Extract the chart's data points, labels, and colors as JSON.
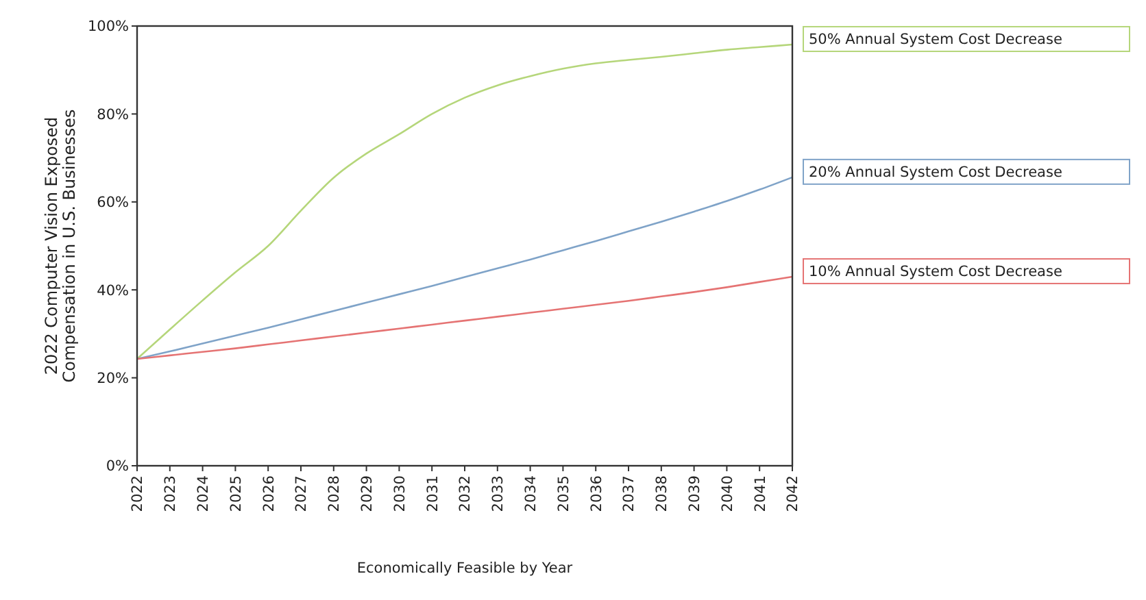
{
  "chart_data": {
    "type": "line",
    "xlabel": "Economically Feasible by Year",
    "ylabel": "2022 Computer Vision Exposed\nCompensation in U.S. Businesses",
    "categories": [
      "2022",
      "2023",
      "2024",
      "2025",
      "2026",
      "2027",
      "2028",
      "2029",
      "2030",
      "2031",
      "2032",
      "2033",
      "2034",
      "2035",
      "2036",
      "2037",
      "2038",
      "2039",
      "2040",
      "2041",
      "2042"
    ],
    "series": [
      {
        "name": "50% Annual System Cost Decrease",
        "color": "#b5d67a",
        "values": [
          24.3,
          31,
          37.6,
          44,
          50,
          58,
          65.5,
          71,
          75.4,
          80,
          83.7,
          86.5,
          88.6,
          90.3,
          91.5,
          92.3,
          93,
          93.8,
          94.6,
          95.2,
          95.8
        ]
      },
      {
        "name": "20% Annual System Cost Decrease",
        "color": "#7fa3c8",
        "values": [
          24.3,
          26,
          27.8,
          29.6,
          31.4,
          33.3,
          35.2,
          37.1,
          39,
          40.9,
          42.9,
          44.9,
          46.9,
          49,
          51.1,
          53.3,
          55.5,
          57.8,
          60.2,
          62.8,
          65.6
        ]
      },
      {
        "name": "10% Annual System Cost Decrease",
        "color": "#e57373",
        "values": [
          24.3,
          25.1,
          25.9,
          26.7,
          27.6,
          28.5,
          29.4,
          30.3,
          31.2,
          32.1,
          33,
          33.9,
          34.8,
          35.7,
          36.6,
          37.5,
          38.5,
          39.5,
          40.6,
          41.8,
          43
        ]
      }
    ],
    "ylim": [
      0,
      100
    ],
    "yticks": [
      {
        "value": 0,
        "label": "0%"
      },
      {
        "value": 20,
        "label": "20%"
      },
      {
        "value": 40,
        "label": "40%"
      },
      {
        "value": 60,
        "label": "60%"
      },
      {
        "value": 80,
        "label": "80%"
      },
      {
        "value": 100,
        "label": "100%"
      }
    ],
    "grid": false,
    "marker": "none",
    "line_style": "solid"
  }
}
